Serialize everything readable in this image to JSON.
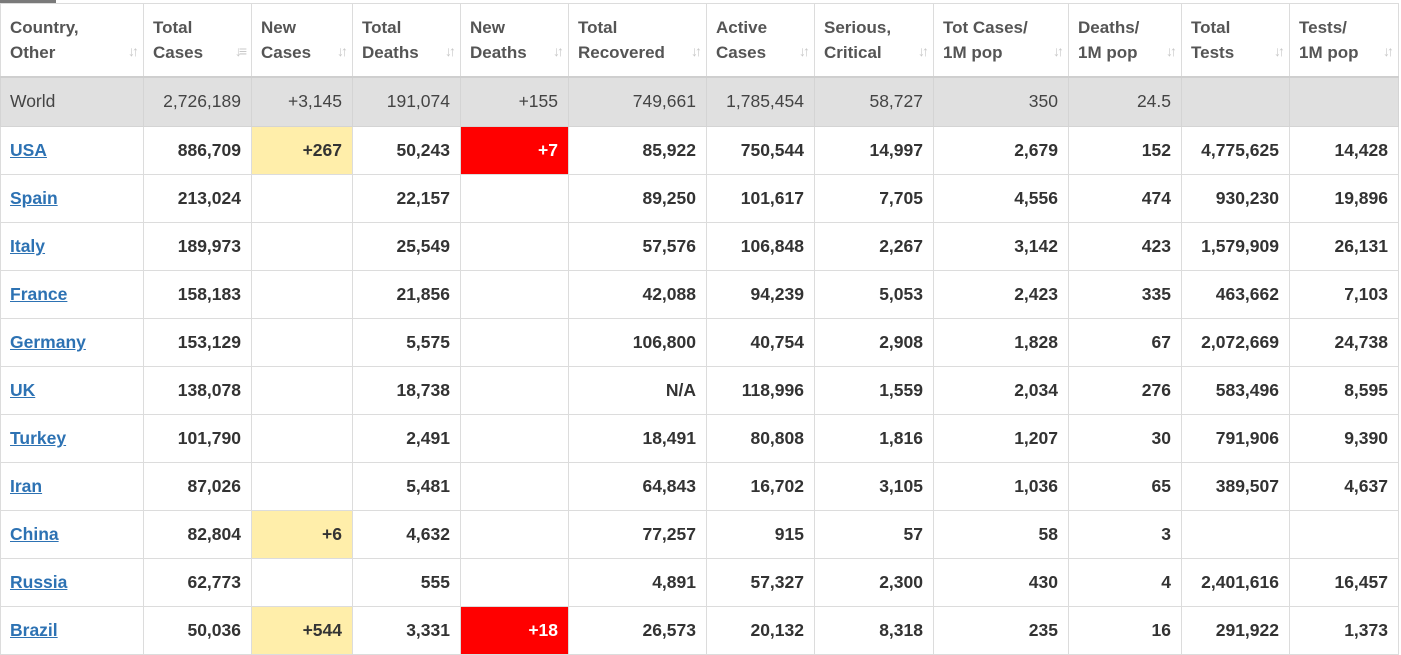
{
  "colors": {
    "new_cases_highlight": "#ffeeaa",
    "new_deaths_highlight": "#ff0000",
    "country_link": "#2d72b3",
    "world_row_bg": "#e0e0e0"
  },
  "icons": {
    "sort_icon": "sort-arrows-icon",
    "sorted_desc_icon": "sort-desc-icon"
  },
  "columns": [
    {
      "line1": "Country,",
      "line2": "Other",
      "sort_glyph": "↓↑"
    },
    {
      "line1": "Total",
      "line2": "Cases",
      "sort_glyph": "↓≡"
    },
    {
      "line1": "New",
      "line2": "Cases",
      "sort_glyph": "↓↑"
    },
    {
      "line1": "Total",
      "line2": "Deaths",
      "sort_glyph": "↓↑"
    },
    {
      "line1": "New",
      "line2": "Deaths",
      "sort_glyph": "↓↑"
    },
    {
      "line1": "Total",
      "line2": "Recovered",
      "sort_glyph": "↓↑"
    },
    {
      "line1": "Active",
      "line2": "Cases",
      "sort_glyph": "↓↑"
    },
    {
      "line1": "Serious,",
      "line2": "Critical",
      "sort_glyph": "↓↑"
    },
    {
      "line1": "Tot Cases/",
      "line2": "1M pop",
      "sort_glyph": "↓↑"
    },
    {
      "line1": "Deaths/",
      "line2": "1M pop",
      "sort_glyph": "↓↑"
    },
    {
      "line1": "Total",
      "line2": "Tests",
      "sort_glyph": "↓↑"
    },
    {
      "line1": "Tests/",
      "line2": "1M pop",
      "sort_glyph": "↓↑"
    }
  ],
  "world": [
    "World",
    "2,726,189",
    "+3,145",
    "191,074",
    "+155",
    "749,661",
    "1,785,454",
    "58,727",
    "350",
    "24.5",
    "",
    ""
  ],
  "rows": [
    [
      "USA",
      "886,709",
      "+267",
      "50,243",
      "+7",
      "85,922",
      "750,544",
      "14,997",
      "2,679",
      "152",
      "4,775,625",
      "14,428"
    ],
    [
      "Spain",
      "213,024",
      "",
      "22,157",
      "",
      "89,250",
      "101,617",
      "7,705",
      "4,556",
      "474",
      "930,230",
      "19,896"
    ],
    [
      "Italy",
      "189,973",
      "",
      "25,549",
      "",
      "57,576",
      "106,848",
      "2,267",
      "3,142",
      "423",
      "1,579,909",
      "26,131"
    ],
    [
      "France",
      "158,183",
      "",
      "21,856",
      "",
      "42,088",
      "94,239",
      "5,053",
      "2,423",
      "335",
      "463,662",
      "7,103"
    ],
    [
      "Germany",
      "153,129",
      "",
      "5,575",
      "",
      "106,800",
      "40,754",
      "2,908",
      "1,828",
      "67",
      "2,072,669",
      "24,738"
    ],
    [
      "UK",
      "138,078",
      "",
      "18,738",
      "",
      "N/A",
      "118,996",
      "1,559",
      "2,034",
      "276",
      "583,496",
      "8,595"
    ],
    [
      "Turkey",
      "101,790",
      "",
      "2,491",
      "",
      "18,491",
      "80,808",
      "1,816",
      "1,207",
      "30",
      "791,906",
      "9,390"
    ],
    [
      "Iran",
      "87,026",
      "",
      "5,481",
      "",
      "64,843",
      "16,702",
      "3,105",
      "1,036",
      "65",
      "389,507",
      "4,637"
    ],
    [
      "China",
      "82,804",
      "+6",
      "4,632",
      "",
      "77,257",
      "915",
      "57",
      "58",
      "3",
      "",
      ""
    ],
    [
      "Russia",
      "62,773",
      "",
      "555",
      "",
      "4,891",
      "57,327",
      "2,300",
      "430",
      "4",
      "2,401,616",
      "16,457"
    ],
    [
      "Brazil",
      "50,036",
      "+544",
      "3,331",
      "+18",
      "26,573",
      "20,132",
      "8,318",
      "235",
      "16",
      "291,922",
      "1,373"
    ]
  ]
}
